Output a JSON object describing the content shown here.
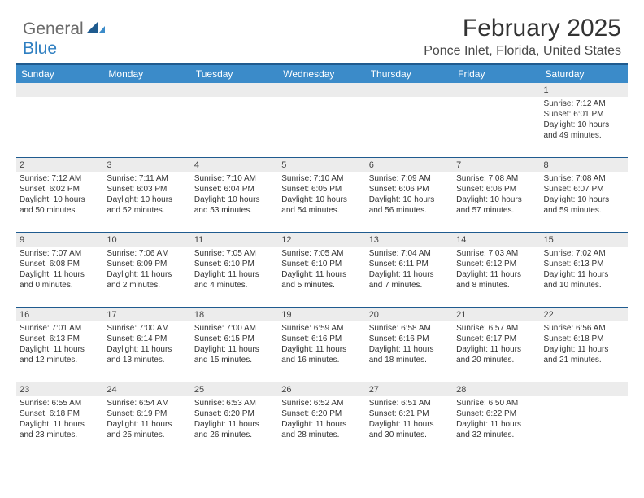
{
  "brand": {
    "part1": "General",
    "part2": "Blue"
  },
  "title": "February 2025",
  "location": "Ponce Inlet, Florida, United States",
  "colors": {
    "header_bar": "#3b8bc9",
    "header_border": "#1f5b8f",
    "daynum_bg": "#ececec",
    "brand_gray": "#6b6b6b",
    "brand_blue": "#2f7fc1",
    "text": "#333333"
  },
  "typography": {
    "title_fontsize": 30,
    "location_fontsize": 16,
    "weekday_fontsize": 12,
    "cell_fontsize": 10
  },
  "weekdays": [
    "Sunday",
    "Monday",
    "Tuesday",
    "Wednesday",
    "Thursday",
    "Friday",
    "Saturday"
  ],
  "weeks": [
    [
      {
        "day": "",
        "sunrise": "",
        "sunset": "",
        "daylight1": "",
        "daylight2": ""
      },
      {
        "day": "",
        "sunrise": "",
        "sunset": "",
        "daylight1": "",
        "daylight2": ""
      },
      {
        "day": "",
        "sunrise": "",
        "sunset": "",
        "daylight1": "",
        "daylight2": ""
      },
      {
        "day": "",
        "sunrise": "",
        "sunset": "",
        "daylight1": "",
        "daylight2": ""
      },
      {
        "day": "",
        "sunrise": "",
        "sunset": "",
        "daylight1": "",
        "daylight2": ""
      },
      {
        "day": "",
        "sunrise": "",
        "sunset": "",
        "daylight1": "",
        "daylight2": ""
      },
      {
        "day": "1",
        "sunrise": "Sunrise: 7:12 AM",
        "sunset": "Sunset: 6:01 PM",
        "daylight1": "Daylight: 10 hours",
        "daylight2": "and 49 minutes."
      }
    ],
    [
      {
        "day": "2",
        "sunrise": "Sunrise: 7:12 AM",
        "sunset": "Sunset: 6:02 PM",
        "daylight1": "Daylight: 10 hours",
        "daylight2": "and 50 minutes."
      },
      {
        "day": "3",
        "sunrise": "Sunrise: 7:11 AM",
        "sunset": "Sunset: 6:03 PM",
        "daylight1": "Daylight: 10 hours",
        "daylight2": "and 52 minutes."
      },
      {
        "day": "4",
        "sunrise": "Sunrise: 7:10 AM",
        "sunset": "Sunset: 6:04 PM",
        "daylight1": "Daylight: 10 hours",
        "daylight2": "and 53 minutes."
      },
      {
        "day": "5",
        "sunrise": "Sunrise: 7:10 AM",
        "sunset": "Sunset: 6:05 PM",
        "daylight1": "Daylight: 10 hours",
        "daylight2": "and 54 minutes."
      },
      {
        "day": "6",
        "sunrise": "Sunrise: 7:09 AM",
        "sunset": "Sunset: 6:06 PM",
        "daylight1": "Daylight: 10 hours",
        "daylight2": "and 56 minutes."
      },
      {
        "day": "7",
        "sunrise": "Sunrise: 7:08 AM",
        "sunset": "Sunset: 6:06 PM",
        "daylight1": "Daylight: 10 hours",
        "daylight2": "and 57 minutes."
      },
      {
        "day": "8",
        "sunrise": "Sunrise: 7:08 AM",
        "sunset": "Sunset: 6:07 PM",
        "daylight1": "Daylight: 10 hours",
        "daylight2": "and 59 minutes."
      }
    ],
    [
      {
        "day": "9",
        "sunrise": "Sunrise: 7:07 AM",
        "sunset": "Sunset: 6:08 PM",
        "daylight1": "Daylight: 11 hours",
        "daylight2": "and 0 minutes."
      },
      {
        "day": "10",
        "sunrise": "Sunrise: 7:06 AM",
        "sunset": "Sunset: 6:09 PM",
        "daylight1": "Daylight: 11 hours",
        "daylight2": "and 2 minutes."
      },
      {
        "day": "11",
        "sunrise": "Sunrise: 7:05 AM",
        "sunset": "Sunset: 6:10 PM",
        "daylight1": "Daylight: 11 hours",
        "daylight2": "and 4 minutes."
      },
      {
        "day": "12",
        "sunrise": "Sunrise: 7:05 AM",
        "sunset": "Sunset: 6:10 PM",
        "daylight1": "Daylight: 11 hours",
        "daylight2": "and 5 minutes."
      },
      {
        "day": "13",
        "sunrise": "Sunrise: 7:04 AM",
        "sunset": "Sunset: 6:11 PM",
        "daylight1": "Daylight: 11 hours",
        "daylight2": "and 7 minutes."
      },
      {
        "day": "14",
        "sunrise": "Sunrise: 7:03 AM",
        "sunset": "Sunset: 6:12 PM",
        "daylight1": "Daylight: 11 hours",
        "daylight2": "and 8 minutes."
      },
      {
        "day": "15",
        "sunrise": "Sunrise: 7:02 AM",
        "sunset": "Sunset: 6:13 PM",
        "daylight1": "Daylight: 11 hours",
        "daylight2": "and 10 minutes."
      }
    ],
    [
      {
        "day": "16",
        "sunrise": "Sunrise: 7:01 AM",
        "sunset": "Sunset: 6:13 PM",
        "daylight1": "Daylight: 11 hours",
        "daylight2": "and 12 minutes."
      },
      {
        "day": "17",
        "sunrise": "Sunrise: 7:00 AM",
        "sunset": "Sunset: 6:14 PM",
        "daylight1": "Daylight: 11 hours",
        "daylight2": "and 13 minutes."
      },
      {
        "day": "18",
        "sunrise": "Sunrise: 7:00 AM",
        "sunset": "Sunset: 6:15 PM",
        "daylight1": "Daylight: 11 hours",
        "daylight2": "and 15 minutes."
      },
      {
        "day": "19",
        "sunrise": "Sunrise: 6:59 AM",
        "sunset": "Sunset: 6:16 PM",
        "daylight1": "Daylight: 11 hours",
        "daylight2": "and 16 minutes."
      },
      {
        "day": "20",
        "sunrise": "Sunrise: 6:58 AM",
        "sunset": "Sunset: 6:16 PM",
        "daylight1": "Daylight: 11 hours",
        "daylight2": "and 18 minutes."
      },
      {
        "day": "21",
        "sunrise": "Sunrise: 6:57 AM",
        "sunset": "Sunset: 6:17 PM",
        "daylight1": "Daylight: 11 hours",
        "daylight2": "and 20 minutes."
      },
      {
        "day": "22",
        "sunrise": "Sunrise: 6:56 AM",
        "sunset": "Sunset: 6:18 PM",
        "daylight1": "Daylight: 11 hours",
        "daylight2": "and 21 minutes."
      }
    ],
    [
      {
        "day": "23",
        "sunrise": "Sunrise: 6:55 AM",
        "sunset": "Sunset: 6:18 PM",
        "daylight1": "Daylight: 11 hours",
        "daylight2": "and 23 minutes."
      },
      {
        "day": "24",
        "sunrise": "Sunrise: 6:54 AM",
        "sunset": "Sunset: 6:19 PM",
        "daylight1": "Daylight: 11 hours",
        "daylight2": "and 25 minutes."
      },
      {
        "day": "25",
        "sunrise": "Sunrise: 6:53 AM",
        "sunset": "Sunset: 6:20 PM",
        "daylight1": "Daylight: 11 hours",
        "daylight2": "and 26 minutes."
      },
      {
        "day": "26",
        "sunrise": "Sunrise: 6:52 AM",
        "sunset": "Sunset: 6:20 PM",
        "daylight1": "Daylight: 11 hours",
        "daylight2": "and 28 minutes."
      },
      {
        "day": "27",
        "sunrise": "Sunrise: 6:51 AM",
        "sunset": "Sunset: 6:21 PM",
        "daylight1": "Daylight: 11 hours",
        "daylight2": "and 30 minutes."
      },
      {
        "day": "28",
        "sunrise": "Sunrise: 6:50 AM",
        "sunset": "Sunset: 6:22 PM",
        "daylight1": "Daylight: 11 hours",
        "daylight2": "and 32 minutes."
      },
      {
        "day": "",
        "sunrise": "",
        "sunset": "",
        "daylight1": "",
        "daylight2": ""
      }
    ]
  ]
}
